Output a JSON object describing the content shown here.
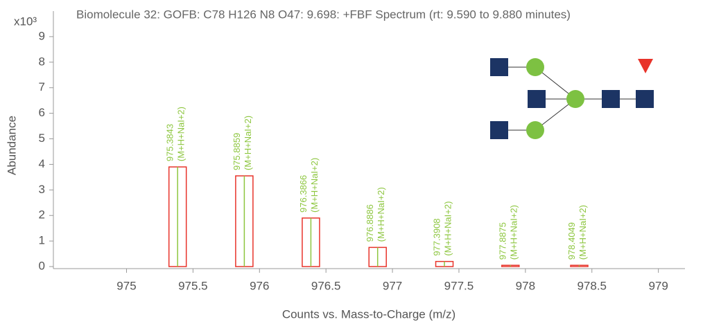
{
  "chart_data": {
    "type": "spectrum",
    "title": "Biomolecule 32: GOFB: C78 H126 N8 O47: 9.698: +FBF Spectrum (rt: 9.590 to 9.880 minutes)",
    "y_multiplier": "x10³",
    "y_label": "Abundance",
    "x_label": "Counts vs. Mass-to-Charge (m/z)",
    "x": [
      975.3843,
      975.8859,
      976.3866,
      976.8886,
      977.3908,
      977.8875,
      978.4049
    ],
    "values": [
      3.9,
      3.55,
      1.9,
      0.75,
      0.2,
      0.05,
      0.05
    ],
    "annotations": [
      "(M+H+NaI+2)",
      "(M+H+NaI+2)",
      "(M+H+NaI+2)",
      "(M+H+NaI+2)",
      "(M+H+NaI+2)",
      "(M+H+NaI+2)",
      "(M+H+NaI+2)"
    ],
    "color": "#e8332a",
    "centroid_color": "#8dc63f",
    "xlim": [
      974.45,
      979.2
    ],
    "ylim": [
      -0.08,
      10
    ],
    "xticks": [
      975,
      975.5,
      976,
      976.5,
      977,
      977.5,
      978,
      978.5,
      979
    ],
    "yticks": [
      0,
      1,
      2,
      3,
      4,
      5,
      6,
      7,
      8,
      9
    ],
    "grid": false
  }
}
